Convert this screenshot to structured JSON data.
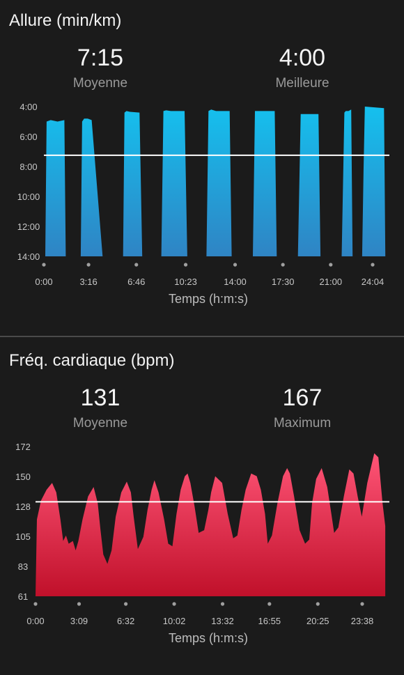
{
  "pace": {
    "title": "Allure (min/km)",
    "avg_value": "7:15",
    "avg_label": "Moyenne",
    "best_value": "4:00",
    "best_label": "Meilleure"
  },
  "hr": {
    "title": "Fréq. cardiaque (bpm)",
    "avg_value": "131",
    "avg_label": "Moyenne",
    "max_value": "167",
    "max_label": "Maximum"
  },
  "colors": {
    "background": "#1b1b1b",
    "pace_top": "#15c0ee",
    "pace_bottom": "#2f84c4",
    "hr_top": "#ff5577",
    "hr_bottom": "#c0102a",
    "average_line": "#ffffff"
  },
  "chart_data": [
    {
      "type": "area",
      "title": "Allure (min/km)",
      "xlabel": "Temps (h:m:s)",
      "ylabel": "",
      "y_inverted": true,
      "ylim": [
        14,
        4
      ],
      "y_ticks": [
        "4:00",
        "6:00",
        "8:00",
        "10:00",
        "12:00",
        "14:00"
      ],
      "x_ticks": [
        "0:00",
        "3:16",
        "6:46",
        "10:23",
        "14:00",
        "17:30",
        "21:00",
        "24:04"
      ],
      "x_tick_minutes": [
        0,
        3.27,
        6.77,
        10.38,
        14.0,
        17.5,
        21.0,
        24.07
      ],
      "average": 7.25,
      "series": [
        {
          "x": [
            0,
            0.1,
            0.2,
            0.5,
            1.0,
            1.5,
            1.6,
            1.85,
            2.7,
            2.8,
            2.95,
            3.2,
            3.5,
            4.3,
            4.4,
            5.8,
            5.9,
            6.05,
            6.3,
            7.0,
            7.2,
            7.35,
            8.6,
            8.75,
            8.95,
            9.3,
            10.3,
            10.5,
            10.65,
            11.9,
            12.05,
            12.25,
            12.6,
            13.6,
            13.75,
            13.85,
            15.3,
            15.45,
            15.6,
            15.9,
            16.9,
            17.05,
            17.2,
            18.6,
            18.8,
            18.95,
            19.4,
            20.1,
            20.25,
            20.4,
            21.8,
            22.0,
            22.1,
            22.3,
            22.5,
            22.6,
            23.3,
            23.4,
            23.5,
            24.9,
            25.0,
            25.3
          ],
          "y": [
            14,
            14,
            5.0,
            4.9,
            5.0,
            4.9,
            14,
            14,
            14,
            5.0,
            4.8,
            4.8,
            4.9,
            14,
            14,
            14,
            4.4,
            4.3,
            4.35,
            4.4,
            14,
            14,
            14,
            4.3,
            4.25,
            4.3,
            4.3,
            14,
            14,
            14,
            4.3,
            4.2,
            4.3,
            4.3,
            14,
            14,
            14,
            4.3,
            4.3,
            4.3,
            4.3,
            14,
            14,
            14,
            4.5,
            4.5,
            4.5,
            4.5,
            14,
            14,
            14,
            4.4,
            4.3,
            4.3,
            4.2,
            14,
            14,
            8.3,
            4.0,
            4.1,
            14,
            14
          ]
        }
      ]
    },
    {
      "type": "area",
      "title": "Fréq. cardiaque (bpm)",
      "xlabel": "Temps (h:m:s)",
      "ylabel": "",
      "ylim": [
        61,
        172
      ],
      "y_ticks": [
        "172",
        "150",
        "128",
        "105",
        "83",
        "61"
      ],
      "x_ticks": [
        "0:00",
        "3:09",
        "6:32",
        "10:02",
        "13:32",
        "16:55",
        "20:25",
        "23:38"
      ],
      "x_tick_minutes": [
        0,
        3.15,
        6.53,
        10.03,
        13.53,
        16.92,
        20.42,
        23.63
      ],
      "average": 131,
      "series": [
        {
          "x": [
            0,
            0.1,
            0.4,
            0.8,
            1.2,
            1.5,
            1.8,
            2.0,
            2.2,
            2.4,
            2.7,
            2.9,
            3.1,
            3.4,
            3.8,
            4.2,
            4.5,
            4.7,
            4.9,
            5.2,
            5.5,
            5.8,
            6.2,
            6.6,
            6.9,
            7.1,
            7.4,
            7.8,
            8.1,
            8.4,
            8.6,
            8.9,
            9.3,
            9.6,
            9.9,
            10.2,
            10.5,
            10.8,
            11.0,
            11.2,
            11.5,
            11.8,
            12.2,
            12.5,
            12.7,
            13.0,
            13.5,
            13.9,
            14.3,
            14.6,
            14.9,
            15.2,
            15.6,
            16.0,
            16.3,
            16.6,
            16.8,
            17.1,
            17.5,
            17.9,
            18.2,
            18.4,
            18.7,
            19.1,
            19.5,
            19.8,
            20.0,
            20.3,
            20.7,
            21.1,
            21.4,
            21.6,
            21.9,
            22.3,
            22.7,
            23.0,
            23.3,
            23.6,
            24.0,
            24.5,
            24.8,
            25.1,
            25.3
          ],
          "y": [
            61,
            118,
            132,
            140,
            145,
            138,
            118,
            102,
            106,
            100,
            102,
            95,
            102,
            118,
            135,
            142,
            130,
            110,
            92,
            85,
            95,
            120,
            138,
            146,
            138,
            120,
            96,
            105,
            125,
            140,
            147,
            138,
            118,
            100,
            98,
            122,
            140,
            150,
            152,
            145,
            128,
            108,
            110,
            125,
            138,
            150,
            145,
            122,
            104,
            106,
            125,
            140,
            152,
            150,
            140,
            122,
            100,
            106,
            130,
            150,
            156,
            152,
            135,
            110,
            100,
            103,
            130,
            148,
            156,
            142,
            122,
            108,
            112,
            135,
            155,
            152,
            135,
            120,
            145,
            167,
            164,
            130,
            113
          ]
        }
      ]
    }
  ]
}
